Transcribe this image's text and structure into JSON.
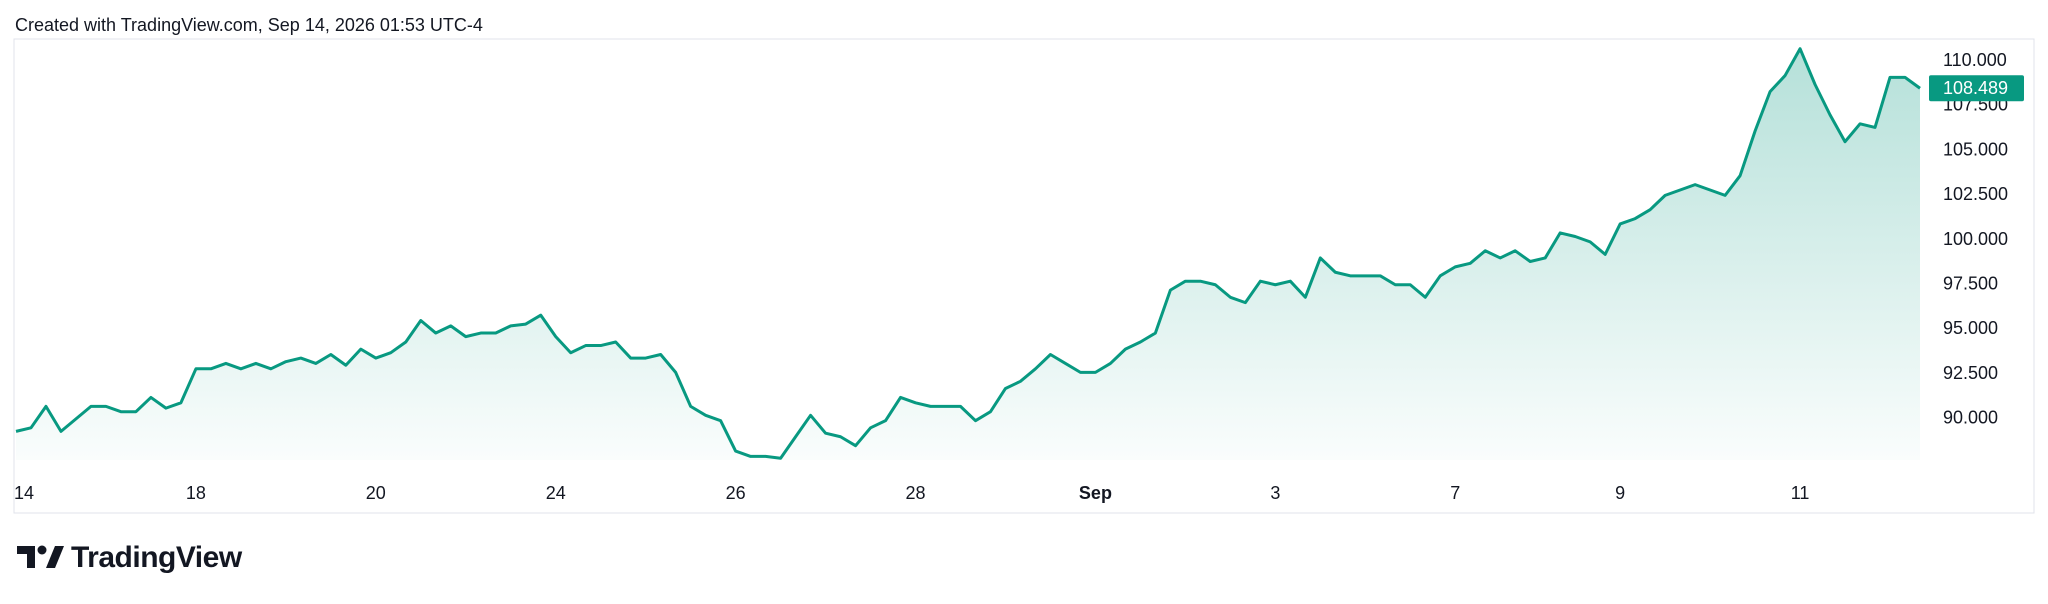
{
  "chart_data": {
    "type": "area",
    "title": "Created with TradingView.com, Sep 14, 2026 01:53 UTC-4",
    "brand": "TradingView",
    "color": "#089981",
    "categories": [
      "14",
      null,
      null,
      null,
      null,
      null,
      null,
      null,
      null,
      null,
      null,
      null,
      "18",
      null,
      null,
      null,
      null,
      null,
      null,
      null,
      null,
      null,
      null,
      null,
      "20",
      null,
      null,
      null,
      null,
      null,
      null,
      null,
      null,
      null,
      null,
      null,
      "24",
      null,
      null,
      null,
      null,
      null,
      null,
      null,
      null,
      null,
      null,
      null,
      "26",
      null,
      null,
      null,
      null,
      null,
      null,
      null,
      null,
      null,
      null,
      null,
      "28",
      null,
      null,
      null,
      null,
      null,
      null,
      null,
      null,
      null,
      null,
      null,
      "Sep",
      null,
      null,
      null,
      null,
      null,
      null,
      null,
      null,
      null,
      null,
      null,
      "3",
      null,
      null,
      null,
      null,
      null,
      null,
      null,
      null,
      null,
      null,
      null,
      "7",
      null,
      null,
      null,
      null,
      null,
      null,
      null,
      null,
      null,
      null,
      "9",
      null,
      null,
      null,
      null,
      null,
      null,
      null,
      null,
      null,
      null,
      null,
      "11",
      null,
      null,
      null,
      null,
      null,
      null,
      null,
      null
    ],
    "values": [
      89.3,
      89.5,
      90.7,
      89.3,
      90.0,
      90.7,
      90.7,
      90.4,
      90.4,
      91.2,
      90.6,
      90.9,
      92.8,
      92.8,
      93.1,
      92.8,
      93.1,
      92.8,
      93.2,
      93.4,
      93.1,
      93.6,
      93.0,
      93.9,
      93.4,
      93.7,
      94.3,
      95.5,
      94.8,
      95.2,
      94.6,
      94.8,
      94.8,
      95.2,
      95.3,
      95.8,
      94.6,
      93.7,
      94.1,
      94.1,
      94.3,
      93.4,
      93.4,
      93.6,
      92.6,
      90.7,
      90.2,
      89.9,
      88.2,
      87.9,
      87.9,
      87.8,
      89.0,
      90.2,
      89.2,
      89.0,
      88.5,
      89.5,
      89.9,
      91.2,
      90.9,
      90.7,
      90.7,
      90.7,
      89.9,
      90.4,
      91.7,
      92.1,
      92.8,
      93.6,
      93.1,
      92.6,
      92.6,
      93.1,
      93.9,
      94.3,
      94.8,
      97.2,
      97.7,
      97.7,
      97.5,
      96.8,
      96.5,
      97.7,
      97.5,
      97.7,
      96.8,
      99.0,
      98.2,
      98.0,
      98.0,
      98.0,
      97.5,
      97.5,
      96.8,
      98.0,
      98.5,
      98.7,
      99.4,
      99.0,
      99.4,
      98.8,
      99.0,
      100.4,
      100.2,
      99.9,
      99.2,
      100.9,
      101.2,
      101.7,
      102.5,
      102.8,
      103.1,
      102.8,
      102.5,
      103.6,
      106.1,
      108.3,
      109.2,
      110.7,
      108.7,
      107.0,
      105.5,
      106.5,
      106.3,
      109.1,
      109.1,
      108.489
    ],
    "ylim": [
      87.7,
      111.3
    ],
    "yticks": [
      {
        "value": 90,
        "label": "90.000"
      },
      {
        "value": 92.5,
        "label": "92.500"
      },
      {
        "value": 95,
        "label": "95.000"
      },
      {
        "value": 97.5,
        "label": "97.500"
      },
      {
        "value": 100,
        "label": "100.000"
      },
      {
        "value": 102.5,
        "label": "102.500"
      },
      {
        "value": 105,
        "label": "105.000"
      },
      {
        "value": 107.5,
        "label": "107.500"
      },
      {
        "value": 110,
        "label": "110.000"
      }
    ]
  }
}
